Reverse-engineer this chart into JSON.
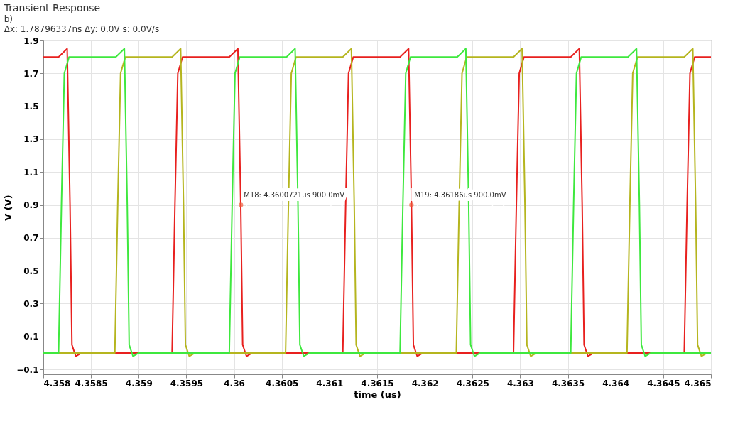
{
  "chart_data": {
    "type": "line",
    "title": "Transient Response",
    "xlabel": "time (us)",
    "ylabel": "V (V)",
    "xlim": [
      4.358,
      4.365
    ],
    "ylim": [
      -0.13,
      1.9
    ],
    "xticks": [
      4.358,
      4.3585,
      4.359,
      4.3595,
      4.36,
      4.3605,
      4.361,
      4.3615,
      4.362,
      4.3625,
      4.363,
      4.3635,
      4.364,
      4.3645,
      4.365
    ],
    "yticks": [
      -0.1,
      0.1,
      0.3,
      0.5,
      0.7,
      0.9,
      1.1,
      1.3,
      1.5,
      1.7,
      1.9
    ],
    "grid": true,
    "marker": "none",
    "line_style": "solid",
    "annotations": [
      "b)",
      "Δx: 1.78796337ns Δy: 0.0V s: 0.0V/s",
      {
        "text": "M18: 4.3600721us 900.0mV",
        "x": 4.3600721,
        "y": 0.9
      },
      {
        "text": "M19: 4.36186us 900.0mV",
        "x": 4.36186,
        "y": 0.9
      }
    ],
    "series": [
      {
        "color": "#e8201e",
        "x": [
          4.358,
          4.35816,
          4.35825,
          4.35828,
          4.3583,
          4.35834,
          4.3584,
          4.35935,
          4.35938,
          4.35941,
          4.35946,
          4.35995,
          4.36004,
          4.36007,
          4.36009,
          4.36013,
          4.36019,
          4.36114,
          4.36117,
          4.3612,
          4.36125,
          4.36174,
          4.36183,
          4.36186,
          4.36188,
          4.36192,
          4.36198,
          4.36293,
          4.36296,
          4.36299,
          4.36304,
          4.36353,
          4.36362,
          4.36365,
          4.36367,
          4.36371,
          4.36377,
          4.36472,
          4.36475,
          4.36478,
          4.36483,
          4.365
        ],
        "values": [
          1.8,
          1.8,
          1.85,
          0.9,
          0.05,
          -0.02,
          0,
          0,
          0.9,
          1.7,
          1.8,
          1.8,
          1.85,
          0.9,
          0.05,
          -0.02,
          0,
          0,
          0.9,
          1.7,
          1.8,
          1.8,
          1.85,
          0.9,
          0.05,
          -0.02,
          0,
          0,
          0.9,
          1.7,
          1.8,
          1.8,
          1.85,
          0.9,
          0.05,
          -0.02,
          0,
          0,
          0.9,
          1.7,
          1.8,
          1.8
        ]
      },
      {
        "color": "#b5b51e",
        "x": [
          4.358,
          4.35875,
          4.35878,
          4.35881,
          4.35886,
          4.35935,
          4.35944,
          4.35947,
          4.35949,
          4.35953,
          4.35959,
          4.36054,
          4.36057,
          4.3606,
          4.36065,
          4.36114,
          4.36123,
          4.36126,
          4.36128,
          4.36132,
          4.36138,
          4.36233,
          4.36236,
          4.36239,
          4.36244,
          4.36293,
          4.36302,
          4.36305,
          4.36307,
          4.36311,
          4.36317,
          4.36412,
          4.36415,
          4.36418,
          4.36423,
          4.36472,
          4.36481,
          4.36484,
          4.36486,
          4.3649,
          4.36496,
          4.365
        ],
        "values": [
          0,
          0,
          0.9,
          1.7,
          1.8,
          1.8,
          1.85,
          0.9,
          0.05,
          -0.02,
          0,
          0,
          0.9,
          1.7,
          1.8,
          1.8,
          1.85,
          0.9,
          0.05,
          -0.02,
          0,
          0,
          0.9,
          1.7,
          1.8,
          1.8,
          1.85,
          0.9,
          0.05,
          -0.02,
          0,
          0,
          0.9,
          1.7,
          1.8,
          1.8,
          1.85,
          0.9,
          0.05,
          -0.02,
          0,
          0
        ]
      },
      {
        "color": "#3ee83e",
        "x": [
          4.358,
          4.35816,
          4.35819,
          4.35822,
          4.35827,
          4.35876,
          4.35885,
          4.35888,
          4.3589,
          4.35894,
          4.359,
          4.35995,
          4.35998,
          4.36001,
          4.36006,
          4.36055,
          4.36064,
          4.36067,
          4.36069,
          4.36073,
          4.36079,
          4.36174,
          4.36177,
          4.3618,
          4.36185,
          4.36234,
          4.36243,
          4.36246,
          4.36248,
          4.36252,
          4.36258,
          4.36353,
          4.36356,
          4.36359,
          4.36364,
          4.36413,
          4.36422,
          4.36425,
          4.36427,
          4.36431,
          4.36437,
          4.365
        ],
        "values": [
          0,
          0,
          0.9,
          1.7,
          1.8,
          1.8,
          1.85,
          0.9,
          0.05,
          -0.02,
          0,
          0,
          0.9,
          1.7,
          1.8,
          1.8,
          1.85,
          0.9,
          0.05,
          -0.02,
          0,
          0,
          0.9,
          1.7,
          1.8,
          1.8,
          1.85,
          0.9,
          0.05,
          -0.02,
          0,
          0,
          0.9,
          1.7,
          1.8,
          1.8,
          1.85,
          0.9,
          0.05,
          -0.02,
          0,
          0
        ]
      }
    ]
  }
}
